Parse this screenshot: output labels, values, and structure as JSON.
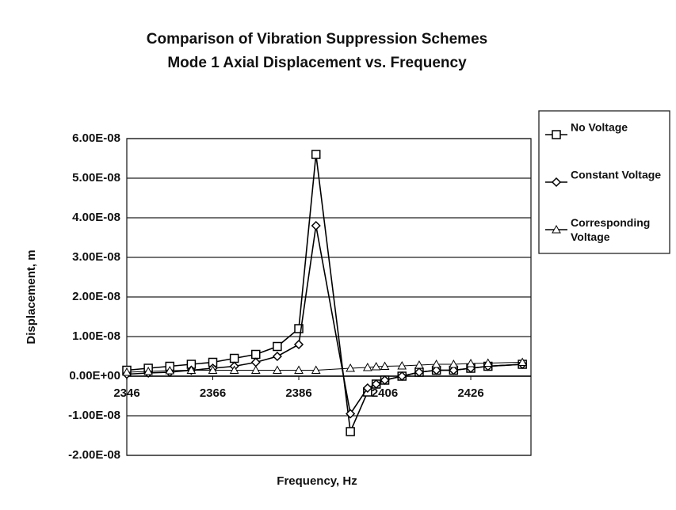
{
  "chart_data": {
    "type": "line",
    "title": "Comparison of Vibration Suppression Schemes",
    "subtitle": "Mode 1 Axial Displacement vs. Frequency",
    "x_label": "Frequency, Hz",
    "y_label": "Displacement, m",
    "x": [
      2346,
      2351,
      2356,
      2361,
      2366,
      2371,
      2376,
      2381,
      2386,
      2390,
      2398,
      2402,
      2404,
      2406,
      2410,
      2414,
      2418,
      2422,
      2426,
      2430,
      2438
    ],
    "series": [
      {
        "name": "No Voltage",
        "color": "#000000",
        "marker": "square",
        "values": [
          1.5e-09,
          2e-09,
          2.5e-09,
          3e-09,
          3.5e-09,
          4.5e-09,
          5.5e-09,
          7.5e-09,
          1.2e-08,
          5.6e-08,
          -1.4e-08,
          -4e-09,
          -2e-09,
          -1e-09,
          0,
          1e-09,
          1.5e-09,
          1.5e-09,
          2e-09,
          2.5e-09,
          3e-09
        ]
      },
      {
        "name": "Constant Voltage",
        "color": "#000000",
        "marker": "diamond",
        "values": [
          5e-10,
          8e-10,
          1e-09,
          1.5e-09,
          2e-09,
          2.5e-09,
          3.5e-09,
          5e-09,
          8e-09,
          3.8e-08,
          -9.5e-09,
          -3e-09,
          -2e-09,
          -1e-09,
          0,
          1e-09,
          1.5e-09,
          1.5e-09,
          2e-09,
          2.5e-09,
          3e-09
        ]
      },
      {
        "name": "Corresponding Voltage",
        "color": "#000000",
        "marker": "triangle",
        "values": [
          1e-09,
          1.2e-09,
          1.4e-09,
          1.5e-09,
          1.5e-09,
          1.5e-09,
          1.5e-09,
          1.5e-09,
          1.5e-09,
          1.5e-09,
          2e-09,
          2.2e-09,
          2.4e-09,
          2.5e-09,
          2.6e-09,
          2.8e-09,
          3e-09,
          3e-09,
          3.2e-09,
          3.3e-09,
          3.5e-09
        ]
      }
    ],
    "xlim": [
      2346,
      2440
    ],
    "xticks": [
      2346,
      2366,
      2386,
      2406,
      2426
    ],
    "ylim": [
      -2e-08,
      6e-08
    ],
    "yticks": [
      {
        "value": -2e-08,
        "label": "-2.00E-08"
      },
      {
        "value": -1e-08,
        "label": "-1.00E-08"
      },
      {
        "value": 0,
        "label": "0.00E+00"
      },
      {
        "value": 1e-08,
        "label": "1.00E-08"
      },
      {
        "value": 2e-08,
        "label": "2.00E-08"
      },
      {
        "value": 3e-08,
        "label": "3.00E-08"
      },
      {
        "value": 4e-08,
        "label": "4.00E-08"
      },
      {
        "value": 5e-08,
        "label": "5.00E-08"
      },
      {
        "value": 6e-08,
        "label": "6.00E-08"
      }
    ],
    "grid": true,
    "legend": "right"
  }
}
